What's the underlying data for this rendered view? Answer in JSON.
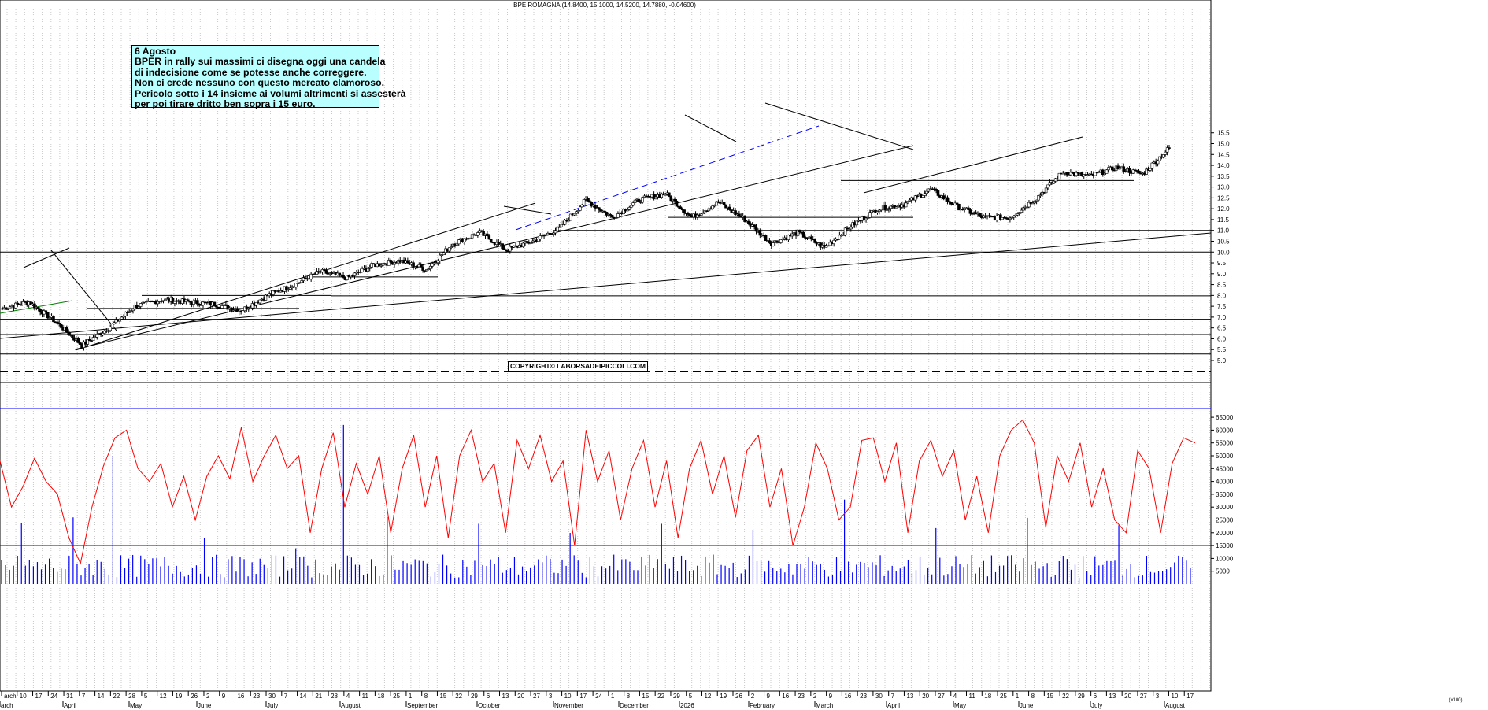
{
  "chart_data": [
    {
      "type": "candlestick",
      "title": "BPE ROMAGNA (14.8400, 15.1000, 14.5200, 14.7880, -0.04600)",
      "ylim": [
        4.5,
        15.5
      ],
      "yticks": [
        "5.0",
        "5.5",
        "6.0",
        "6.5",
        "7.0",
        "7.5",
        "8.0",
        "8.5",
        "9.0",
        "9.5",
        "10.0",
        "10.5",
        "11.0",
        "11.5",
        "12.0",
        "12.5",
        "13.0",
        "13.5",
        "14.0",
        "14.5",
        "15.0",
        "15.5"
      ],
      "grid": true,
      "anchors": [
        {
          "date": "Mar",
          "close": 7.4
        },
        {
          "date": "Apr 1",
          "close": 7.7
        },
        {
          "date": "Apr 4",
          "close": 6.8
        },
        {
          "date": "Apr 7",
          "close": 5.7
        },
        {
          "date": "Apr 14",
          "close": 6.5
        },
        {
          "date": "Apr 28",
          "close": 7.5
        },
        {
          "date": "May 8",
          "close": 7.8
        },
        {
          "date": "Jun 2",
          "close": 7.7
        },
        {
          "date": "Jul 1",
          "close": 7.6
        },
        {
          "date": "Jul 14",
          "close": 7.3
        },
        {
          "date": "Jul 25",
          "close": 8.0
        },
        {
          "date": "Aug 1",
          "close": 8.5
        },
        {
          "date": "Aug 8",
          "close": 9.1
        },
        {
          "date": "Sep 1",
          "close": 8.8
        },
        {
          "date": "Sep 15",
          "close": 9.4
        },
        {
          "date": "Oct 3",
          "close": 9.6
        },
        {
          "date": "Oct 20",
          "close": 9.2
        },
        {
          "date": "Nov 3",
          "close": 10.4
        },
        {
          "date": "Nov 10",
          "close": 10.9
        },
        {
          "date": "Nov 17",
          "close": 10.1
        },
        {
          "date": "Dec 1",
          "close": 10.5
        },
        {
          "date": "Dec 15",
          "close": 11.1
        },
        {
          "date": "Jan 5",
          "close": 12.4
        },
        {
          "date": "Jan 20",
          "close": 11.6
        },
        {
          "date": "Feb 2",
          "close": 12.4
        },
        {
          "date": "Feb 9",
          "close": 12.7
        },
        {
          "date": "Feb 16",
          "close": 11.6
        },
        {
          "date": "Feb 23",
          "close": 12.3
        },
        {
          "date": "Mar 2",
          "close": 11.5
        },
        {
          "date": "Mar 9",
          "close": 10.4
        },
        {
          "date": "Mar 16",
          "close": 10.9
        },
        {
          "date": "Mar 23",
          "close": 10.2
        },
        {
          "date": "Apr 1",
          "close": 11.2
        },
        {
          "date": "Apr 7",
          "close": 12.0
        },
        {
          "date": "Apr 20",
          "close": 12.2
        },
        {
          "date": "May 4",
          "close": 12.9
        },
        {
          "date": "May 11",
          "close": 12.1
        },
        {
          "date": "May 18",
          "close": 11.6
        },
        {
          "date": "Jun 1",
          "close": 11.6
        },
        {
          "date": "Jun 8",
          "close": 12.5
        },
        {
          "date": "Jun 15",
          "close": 13.7
        },
        {
          "date": "Jun 29",
          "close": 13.5
        },
        {
          "date": "Jul 13",
          "close": 13.9
        },
        {
          "date": "Jul 27",
          "close": 13.6
        },
        {
          "date": "Aug 3",
          "close": 14.8
        }
      ]
    },
    {
      "type": "bar+line",
      "ylim": [
        0,
        65000
      ],
      "yticks": [
        "5000",
        "10000",
        "15000",
        "20000",
        "25000",
        "30000",
        "35000",
        "40000",
        "45000",
        "50000",
        "55000",
        "60000",
        "65000"
      ],
      "series": [
        {
          "kind": "bar",
          "color": "#0000ff"
        },
        {
          "kind": "line",
          "color": "#ff0000"
        }
      ],
      "oscillator_levels": [
        48000,
        30000,
        38000,
        49000,
        40000,
        35000,
        18000,
        8000,
        30000,
        46000,
        57000,
        60000,
        45000,
        40000,
        47000,
        30000,
        42000,
        25000,
        42000,
        50000,
        41000,
        61000,
        40000,
        50000,
        58000,
        45000,
        50000,
        20000,
        45000,
        59000,
        30000,
        47000,
        35000,
        50000,
        20000,
        45000,
        58000,
        30000,
        50000,
        18000,
        50000,
        60000,
        40000,
        47000,
        20000,
        56000,
        45000,
        58000,
        40000,
        48000,
        15000,
        60000,
        40000,
        52000,
        25000,
        45000,
        56000,
        30000,
        48000,
        18000,
        45000,
        56000,
        35000,
        50000,
        26000,
        52000,
        58000,
        30000,
        45000,
        15000,
        30000,
        55000,
        45000,
        25000,
        30000,
        56000,
        57000,
        40000,
        55000,
        20000,
        48000,
        56000,
        42000,
        52000,
        25000,
        42000,
        20000,
        50000,
        60000,
        64000,
        55000,
        22000,
        50000,
        40000,
        55000,
        30000,
        45000,
        25000,
        20000,
        52000,
        45000,
        20000,
        47000,
        57000,
        55000
      ]
    }
  ],
  "x_axis": {
    "top_row": [
      "arch",
      "10",
      "17",
      "24",
      "31",
      "7",
      "14",
      "22",
      "28",
      "5",
      "12",
      "19",
      "26",
      "2",
      "9",
      "16",
      "23",
      "30",
      "7",
      "14",
      "21",
      "28",
      "4",
      "11",
      "18",
      "25",
      "1",
      "8",
      "15",
      "22",
      "29",
      "6",
      "13",
      "20",
      "27",
      "3",
      "10",
      "17",
      "24",
      "1",
      "8",
      "15",
      "22",
      "29",
      "5",
      "12",
      "19",
      "26",
      "2",
      "9",
      "16",
      "23",
      "2",
      "9",
      "16",
      "23",
      "30",
      "7",
      "13",
      "20",
      "27",
      "4",
      "11",
      "18",
      "25",
      "1",
      "8",
      "15",
      "22",
      "29",
      "6",
      "13",
      "20",
      "27",
      "3",
      "10",
      "17"
    ],
    "bottom_row": [
      "arch",
      "April",
      "May",
      "June",
      "July",
      "August",
      "September",
      "October",
      "November",
      "December",
      "2026",
      "February",
      "March",
      "April",
      "May",
      "June",
      "July",
      "August"
    ]
  },
  "annotations": {
    "note_date": "6 Agosto",
    "note_lines": [
      "BPER in rally sui massimi ci disegna oggi una candela",
      "di indecisione come se potesse anche correggere.",
      "Non ci crede nessuno con questo mercato clamoroso.",
      "Pericolo sotto i 14 insieme ai volumi altrimenti si assesterà",
      "per poi tirare dritto ben sopra i 15 euro."
    ],
    "copyright": "COPYRIGHT© LABORSADEIPICCOLI.COM",
    "volume_unit": "(x100)"
  },
  "colors": {
    "volume": "#0000ff",
    "oscillator": "#ff0000",
    "trendline_dashed": "#0000ff",
    "trendline_green": "#008000",
    "note_background": "#b9ffff"
  }
}
